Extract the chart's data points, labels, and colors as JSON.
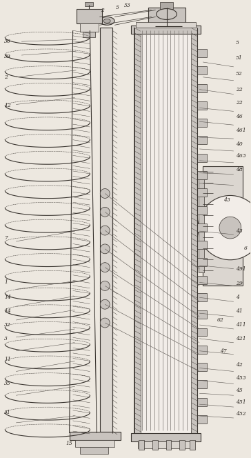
{
  "bg_color": "#ede8e0",
  "line_color": "#3a3530",
  "fig_width": 3.64,
  "fig_height": 6.64,
  "dpi": 100,
  "lw_thin": 0.5,
  "lw_med": 0.8,
  "lw_thick": 1.2,
  "coil_color": "#5a5550",
  "hatch_color": "#6a6560",
  "fill_light": "#dbd6d0",
  "fill_mid": "#c8c3be",
  "fill_dark": "#b0aba6",
  "fill_white": "#f2ede8"
}
